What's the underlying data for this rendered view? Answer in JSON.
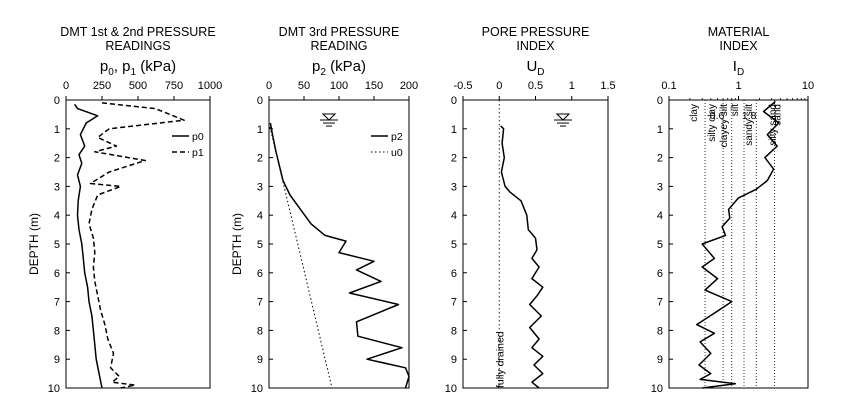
{
  "chart_data": [
    {
      "type": "line",
      "title_lines": [
        "DMT 1st & 2nd PRESSURE",
        "READINGS"
      ],
      "xlabel": "p0, p1 (kPa)",
      "xlabel_parts": {
        "main": "p",
        "sub1": "0",
        "mid": ", p",
        "sub2": "1",
        "unit": " (kPa)"
      },
      "ylabel": "DEPTH (m)",
      "xlim": [
        0,
        1000
      ],
      "ylim": [
        0,
        10
      ],
      "xticks": [
        "0",
        "250",
        "500",
        "750",
        "1000"
      ],
      "yticks": [
        "0",
        "1",
        "2",
        "3",
        "4",
        "5",
        "6",
        "7",
        "8",
        "9",
        "10"
      ],
      "legend": {
        "position": "top-right",
        "entries": [
          "p0",
          "p1"
        ]
      },
      "series": [
        {
          "name": "p0",
          "style": "solid",
          "points": [
            [
              60,
              0.15
            ],
            [
              80,
              0.3
            ],
            [
              220,
              0.55
            ],
            [
              140,
              0.8
            ],
            [
              100,
              1.2
            ],
            [
              130,
              1.6
            ],
            [
              90,
              1.9
            ],
            [
              110,
              2.2
            ],
            [
              80,
              2.6
            ],
            [
              100,
              3.0
            ],
            [
              85,
              3.5
            ],
            [
              80,
              4.0
            ],
            [
              90,
              4.5
            ],
            [
              110,
              5.0
            ],
            [
              120,
              5.5
            ],
            [
              130,
              6.0
            ],
            [
              150,
              6.5
            ],
            [
              160,
              7.0
            ],
            [
              180,
              7.5
            ],
            [
              190,
              8.0
            ],
            [
              200,
              8.5
            ],
            [
              210,
              9.0
            ],
            [
              230,
              9.5
            ],
            [
              250,
              10.0
            ]
          ]
        },
        {
          "name": "p1",
          "style": "dashed",
          "points": [
            [
              250,
              0.1
            ],
            [
              620,
              0.3
            ],
            [
              820,
              0.7
            ],
            [
              300,
              1.0
            ],
            [
              220,
              1.3
            ],
            [
              350,
              1.6
            ],
            [
              200,
              1.8
            ],
            [
              550,
              2.1
            ],
            [
              300,
              2.5
            ],
            [
              170,
              2.9
            ],
            [
              380,
              3.0
            ],
            [
              220,
              3.3
            ],
            [
              180,
              3.8
            ],
            [
              160,
              4.3
            ],
            [
              190,
              4.8
            ],
            [
              200,
              5.3
            ],
            [
              190,
              5.8
            ],
            [
              200,
              6.3
            ],
            [
              220,
              6.8
            ],
            [
              240,
              7.3
            ],
            [
              270,
              7.8
            ],
            [
              290,
              8.3
            ],
            [
              330,
              8.8
            ],
            [
              310,
              9.3
            ],
            [
              370,
              9.6
            ],
            [
              320,
              9.8
            ],
            [
              480,
              9.9
            ],
            [
              380,
              10.0
            ]
          ]
        }
      ]
    },
    {
      "type": "line",
      "title_lines": [
        "DMT 3rd PRESSURE",
        "READING"
      ],
      "xlabel": "p2 (kPa)",
      "xlabel_parts": {
        "main": "p",
        "sub1": "2",
        "unit": " (kPa)"
      },
      "ylabel": "DEPTH (m)",
      "xlim": [
        0,
        200
      ],
      "ylim": [
        0,
        10
      ],
      "xticks": [
        "0",
        "50",
        "100",
        "150",
        "200"
      ],
      "yticks": [
        "0",
        "1",
        "2",
        "3",
        "4",
        "5",
        "6",
        "7",
        "8",
        "9",
        "10"
      ],
      "legend": {
        "position": "top-right",
        "entries": [
          "p2",
          "u0"
        ]
      },
      "water_table_depth": 0.8,
      "series": [
        {
          "name": "p2",
          "style": "solid",
          "points": [
            [
              2,
              0.8
            ],
            [
              5,
              1.2
            ],
            [
              10,
              1.8
            ],
            [
              15,
              2.3
            ],
            [
              20,
              2.8
            ],
            [
              30,
              3.3
            ],
            [
              45,
              3.8
            ],
            [
              60,
              4.3
            ],
            [
              80,
              4.7
            ],
            [
              110,
              4.9
            ],
            [
              100,
              5.3
            ],
            [
              150,
              5.6
            ],
            [
              125,
              5.9
            ],
            [
              160,
              6.3
            ],
            [
              115,
              6.7
            ],
            [
              185,
              7.1
            ],
            [
              125,
              7.7
            ],
            [
              127,
              8.2
            ],
            [
              190,
              8.6
            ],
            [
              140,
              9.0
            ],
            [
              195,
              9.3
            ],
            [
              200,
              9.6
            ],
            [
              195,
              10.0
            ]
          ]
        },
        {
          "name": "u0",
          "style": "dotted",
          "points": [
            [
              0,
              0.8
            ],
            [
              90,
              10.0
            ]
          ]
        }
      ]
    },
    {
      "type": "line",
      "title_lines": [
        "PORE PRESSURE",
        "INDEX"
      ],
      "xlabel": "UD",
      "xlabel_parts": {
        "main": "U",
        "sub1": "D"
      },
      "xlim": [
        -0.5,
        1.5
      ],
      "ylim": [
        0,
        10
      ],
      "xticks": [
        "-0.5",
        "0",
        "0.5",
        "1",
        "1.5"
      ],
      "yticks": [
        "0",
        "1",
        "2",
        "3",
        "4",
        "5",
        "6",
        "7",
        "8",
        "9",
        "10"
      ],
      "water_table_depth": 0.8,
      "annotations": [
        {
          "text": "fully drained",
          "x": 0,
          "y_from": 7.8,
          "y_to": 10
        }
      ],
      "series": [
        {
          "name": "UD",
          "style": "solid",
          "points": [
            [
              0.02,
              0.9
            ],
            [
              0.06,
              1.0
            ],
            [
              0.04,
              1.5
            ],
            [
              0.07,
              2.0
            ],
            [
              0.03,
              2.5
            ],
            [
              0.08,
              3.0
            ],
            [
              0.15,
              3.2
            ],
            [
              0.3,
              3.5
            ],
            [
              0.38,
              4.0
            ],
            [
              0.4,
              4.5
            ],
            [
              0.5,
              4.8
            ],
            [
              0.52,
              5.2
            ],
            [
              0.45,
              5.5
            ],
            [
              0.55,
              5.8
            ],
            [
              0.45,
              6.2
            ],
            [
              0.6,
              6.5
            ],
            [
              0.52,
              6.8
            ],
            [
              0.42,
              7.1
            ],
            [
              0.58,
              7.5
            ],
            [
              0.42,
              7.9
            ],
            [
              0.55,
              8.3
            ],
            [
              0.45,
              8.6
            ],
            [
              0.6,
              8.9
            ],
            [
              0.48,
              9.2
            ],
            [
              0.6,
              9.5
            ],
            [
              0.45,
              9.8
            ],
            [
              0.55,
              10.0
            ]
          ]
        }
      ]
    },
    {
      "type": "line",
      "title_lines": [
        "MATERIAL",
        "INDEX"
      ],
      "xlabel": "ID",
      "xlabel_parts": {
        "main": "I",
        "sub1": "D"
      },
      "xscale": "log",
      "xlim": [
        0.1,
        10
      ],
      "ylim": [
        0,
        10
      ],
      "xticks": [
        "0.1",
        "1",
        "10"
      ],
      "yticks": [
        "0",
        "1",
        "2",
        "3",
        "4",
        "5",
        "6",
        "7",
        "8",
        "9",
        "10"
      ],
      "boundaries": [
        0.33,
        0.6,
        0.8,
        1.2,
        1.8,
        3.3
      ],
      "boundary_labels": [
        "0.6",
        "1.8"
      ],
      "soil_labels": [
        "clay",
        "silty clay",
        "clayey silt",
        "silt",
        "sandy silt",
        "silty sand",
        "sand"
      ],
      "series": [
        {
          "name": "ID",
          "style": "solid",
          "points": [
            [
              3.4,
              0.05
            ],
            [
              2.3,
              0.4
            ],
            [
              3.8,
              0.8
            ],
            [
              2.6,
              1.2
            ],
            [
              3.6,
              1.6
            ],
            [
              2.4,
              2.0
            ],
            [
              3.2,
              2.4
            ],
            [
              2.6,
              2.8
            ],
            [
              1.8,
              3.1
            ],
            [
              1.0,
              3.4
            ],
            [
              0.72,
              3.8
            ],
            [
              0.75,
              4.1
            ],
            [
              0.58,
              4.4
            ],
            [
              0.65,
              4.7
            ],
            [
              0.3,
              5.0
            ],
            [
              0.45,
              5.5
            ],
            [
              0.3,
              5.8
            ],
            [
              0.5,
              6.2
            ],
            [
              0.33,
              6.6
            ],
            [
              0.8,
              7.0
            ],
            [
              0.45,
              7.4
            ],
            [
              0.25,
              7.8
            ],
            [
              0.45,
              8.1
            ],
            [
              0.28,
              8.4
            ],
            [
              0.4,
              8.8
            ],
            [
              0.27,
              9.2
            ],
            [
              0.4,
              9.5
            ],
            [
              0.28,
              9.7
            ],
            [
              0.9,
              9.85
            ],
            [
              0.3,
              10.0
            ]
          ]
        }
      ]
    }
  ]
}
